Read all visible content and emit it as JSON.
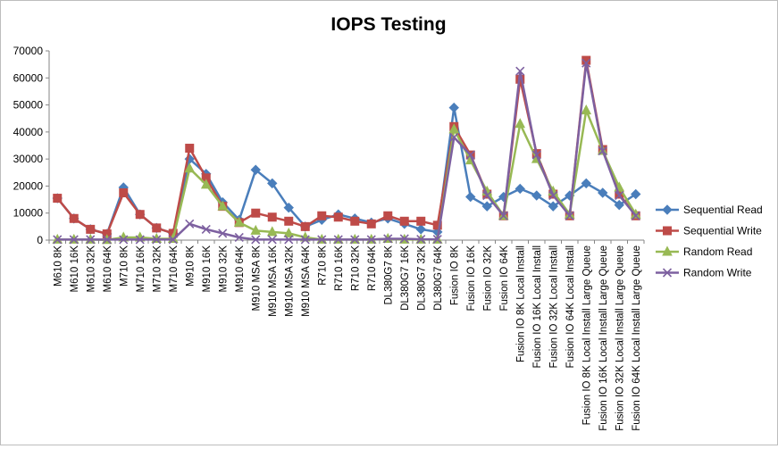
{
  "chart_data": {
    "type": "line",
    "title": "IOPS Testing",
    "xlabel": "",
    "ylabel": "",
    "ylim": [
      0,
      70000
    ],
    "yticks": [
      0,
      10000,
      20000,
      30000,
      40000,
      50000,
      60000,
      70000
    ],
    "grid": false,
    "legend": "right",
    "categories": [
      "M610 8K",
      "M610 16K",
      "M610 32K",
      "M610 64K",
      "M710 8K",
      "M710 16K",
      "M710 32K",
      "M710 64K",
      "M910 8K",
      "M910 16K",
      "M910 32K",
      "M910 64K",
      "M910 MSA 8K",
      "M910 MSA 16K",
      "M910 MSA 32K",
      "M910 MSA 64K",
      "R710 8K",
      "R710 16K",
      "R710 32K",
      "R710 64K",
      "DL380G7 8K",
      "DL380G7 16K",
      "DL380G7 32K",
      "DL380G7 64K",
      "Fusion IO 8K",
      "Fusion IO 16K",
      "Fusion IO 32K",
      "Fusion IO 64K",
      "Fusion IO 8K Local Install",
      "Fusion IO 16K Local Install",
      "Fusion IO 32K Local Install",
      "Fusion IO 64K Local Install",
      "Fusion IO 8K Local Install Large Queue",
      "Fusion IO 16K Local Install Large Queue",
      "Fusion IO 32K Local Install Large Queue",
      "Fusion IO 64K Local Install Large Queue"
    ],
    "series": [
      {
        "name": "Sequential Read",
        "color": "#4a7ebb",
        "marker": "diamond",
        "values": [
          15500,
          8000,
          4000,
          2300,
          19500,
          9500,
          4500,
          2500,
          30000,
          24500,
          14000,
          7500,
          26000,
          21000,
          12000,
          5000,
          7500,
          9500,
          8000,
          6500,
          8000,
          6000,
          4000,
          3000,
          49000,
          16000,
          12500,
          16000,
          19000,
          16500,
          12500,
          16500,
          21000,
          17500,
          13000,
          17000
        ]
      },
      {
        "name": "Sequential Write",
        "color": "#be4b48",
        "marker": "square",
        "values": [
          15500,
          8000,
          4000,
          2300,
          17500,
          9500,
          4500,
          2500,
          34000,
          23000,
          12500,
          6500,
          10000,
          8500,
          7000,
          5000,
          9000,
          8500,
          7000,
          6000,
          9000,
          7000,
          7000,
          5500,
          42000,
          31500,
          17000,
          9000,
          59500,
          32000,
          17000,
          9000,
          66500,
          33500,
          17000,
          9000
        ]
      },
      {
        "name": "Random Read",
        "color": "#98b954",
        "marker": "triangle",
        "values": [
          200,
          200,
          200,
          100,
          1000,
          1000,
          500,
          500,
          26500,
          20500,
          12500,
          6500,
          3500,
          3000,
          2500,
          1000,
          200,
          200,
          200,
          200,
          500,
          200,
          200,
          200,
          41000,
          29500,
          18000,
          9000,
          43000,
          30000,
          18000,
          9500,
          48000,
          33000,
          19500,
          9500
        ]
      },
      {
        "name": "Random Write",
        "color": "#7d60a0",
        "marker": "x",
        "values": [
          200,
          200,
          200,
          200,
          200,
          200,
          200,
          200,
          6000,
          4000,
          2500,
          1000,
          200,
          200,
          200,
          200,
          200,
          200,
          200,
          200,
          500,
          500,
          300,
          300,
          38000,
          31500,
          16500,
          9000,
          62500,
          31500,
          16500,
          9000,
          65500,
          33000,
          16500,
          9000
        ]
      }
    ]
  }
}
